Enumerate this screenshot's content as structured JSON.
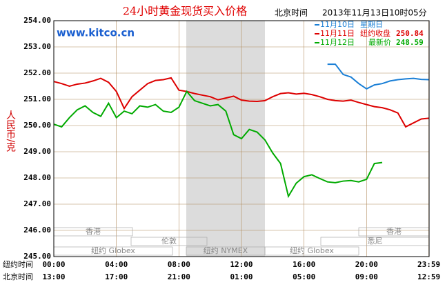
{
  "chart_data": {
    "type": "line",
    "title": "24小时黄金现货买入价格",
    "subtitle_zone": "北京时间",
    "subtitle_time": "2013年11月13日10时05分",
    "watermark": "www.kitco.cn",
    "y_label": "人民币/克",
    "x_row_label": "纽约时间",
    "x2_row_label": "北京时间",
    "x": [
      0,
      0.5,
      1,
      1.5,
      2,
      2.5,
      3,
      3.5,
      4,
      4.5,
      5,
      5.5,
      6,
      6.5,
      7,
      7.5,
      8,
      8.5,
      9,
      9.5,
      10,
      10.5,
      11,
      11.5,
      12,
      12.5,
      13,
      13.5,
      14,
      14.5,
      15,
      15.5,
      16,
      16.5,
      17,
      17.5,
      18,
      18.5,
      19,
      19.5,
      20,
      20.5,
      21,
      21.5,
      22,
      22.5,
      23,
      23.5,
      24
    ],
    "xlim": [
      0,
      24
    ],
    "xticks": [
      {
        "value": 0,
        "label": "00:00"
      },
      {
        "value": 4,
        "label": "04:00"
      },
      {
        "value": 8,
        "label": "08:00"
      },
      {
        "value": 12,
        "label": "12:00"
      },
      {
        "value": 16,
        "label": "16:00"
      },
      {
        "value": 20,
        "label": "20:00"
      },
      {
        "value": 23.98,
        "label": "23:59"
      }
    ],
    "x2_labels": [
      "13:00",
      "17:00",
      "21:00",
      "01:00",
      "05:00",
      "09:00",
      "12:59"
    ],
    "ylim": [
      245,
      254
    ],
    "yticks": [
      {
        "value": 245,
        "label": "245.00"
      },
      {
        "value": 246,
        "label": "246.00"
      },
      {
        "value": 247,
        "label": "247.00"
      },
      {
        "value": 248,
        "label": "248.00"
      },
      {
        "value": 249,
        "label": "249.00"
      },
      {
        "value": 250,
        "label": "250.00"
      },
      {
        "value": 251,
        "label": "251.00"
      },
      {
        "value": 252,
        "label": "252.00"
      },
      {
        "value": 253,
        "label": "253.00"
      },
      {
        "value": 254,
        "label": "254.00"
      }
    ],
    "grid": true,
    "markets": [
      "香港",
      "香港",
      "伦敦",
      "悉尼",
      "纽约 Globex",
      "纽约 NYMEX",
      "纽约 Globex"
    ],
    "series": [
      {
        "name": "11月10日",
        "note": "星期日",
        "color": "#1a7fd6",
        "values": [
          null,
          null,
          null,
          null,
          null,
          null,
          null,
          null,
          null,
          null,
          null,
          null,
          null,
          null,
          null,
          null,
          null,
          null,
          null,
          null,
          null,
          null,
          null,
          null,
          null,
          null,
          null,
          null,
          null,
          null,
          null,
          null,
          null,
          null,
          null,
          252.34,
          252.34,
          251.95,
          251.85,
          251.6,
          251.4,
          251.55,
          251.6,
          251.7,
          251.75,
          251.78,
          251.8,
          251.76,
          251.75
        ]
      },
      {
        "name": "11月11日",
        "note": "纽约收盘",
        "legend_value": 250.84,
        "color": "#dd0000",
        "values": [
          251.68,
          251.6,
          251.5,
          251.58,
          251.62,
          251.7,
          251.8,
          251.65,
          251.3,
          250.65,
          251.1,
          251.35,
          251.6,
          251.72,
          251.75,
          251.82,
          251.35,
          251.3,
          251.22,
          251.16,
          251.1,
          250.98,
          251.05,
          251.12,
          250.97,
          250.93,
          250.92,
          250.95,
          251.1,
          251.22,
          251.25,
          251.2,
          251.23,
          251.18,
          251.1,
          251.0,
          250.95,
          250.93,
          250.97,
          250.88,
          250.8,
          250.72,
          250.68,
          250.6,
          250.48,
          249.95,
          250.1,
          250.25,
          250.28
        ]
      },
      {
        "name": "11月12日",
        "note": "最新价",
        "legend_value": 248.59,
        "color": "#00aa00",
        "values": [
          250.05,
          249.95,
          250.3,
          250.6,
          250.75,
          250.5,
          250.35,
          250.85,
          250.3,
          250.55,
          250.45,
          250.75,
          250.7,
          250.8,
          250.55,
          250.5,
          250.7,
          251.3,
          250.95,
          250.85,
          250.75,
          250.8,
          250.55,
          249.65,
          249.5,
          249.85,
          249.75,
          249.45,
          248.95,
          248.55,
          247.3,
          247.8,
          248.05,
          248.12,
          247.98,
          247.85,
          247.82,
          247.88,
          247.9,
          247.85,
          247.95,
          248.55,
          248.59,
          null,
          null,
          null,
          null,
          null,
          null
        ]
      }
    ]
  }
}
